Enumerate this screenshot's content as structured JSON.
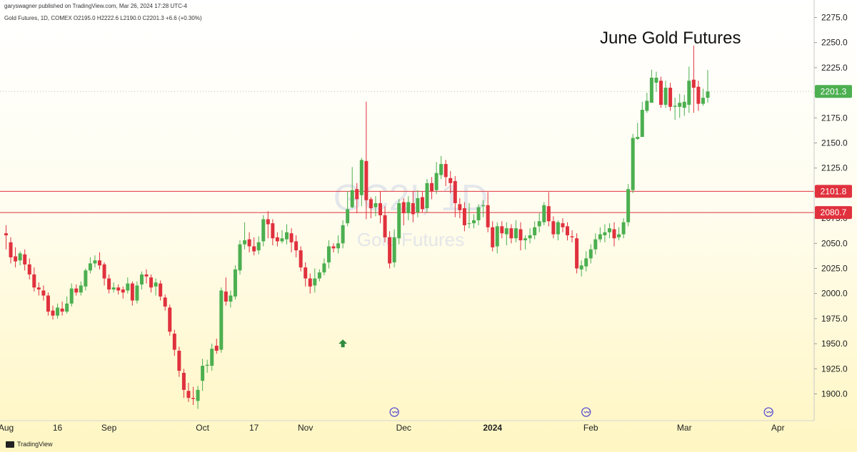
{
  "header": {
    "publisher": "garyswagner published on TradingView.com, Mar 26, 2024 17:28 UTC-4",
    "symbol_line": "Gold Futures, 1D, COMEX  O2195.0  H2222.6  L2190.0  C2201.3  +6.6 (+0.30%)"
  },
  "watermark": {
    "symbol": "GC2!, 1D",
    "name": "Gold Futures"
  },
  "footer": {
    "brand": "TradingView"
  },
  "colors": {
    "up": "#4caf50",
    "down": "#e0313d",
    "level_line": "#e0313d",
    "last_tag": "#4caf50"
  },
  "chart_data": {
    "type": "candlestick",
    "title": "June Gold Futures",
    "ylim": [
      1882.6,
      2287.7
    ],
    "y_ticks": [
      1900.0,
      1925.0,
      1950.0,
      1975.0,
      2000.0,
      2025.0,
      2050.0,
      2075.0,
      2100.0,
      2125.0,
      2150.0,
      2175.0,
      2200.0,
      2225.0,
      2250.0,
      2275.0
    ],
    "x_ticks": [
      {
        "label": "Aug",
        "bar": 0,
        "bold": false
      },
      {
        "label": "16",
        "bar": 11,
        "bold": false
      },
      {
        "label": "Sep",
        "bar": 22,
        "bold": false
      },
      {
        "label": "Oct",
        "bar": 42,
        "bold": false
      },
      {
        "label": "17",
        "bar": 53,
        "bold": false
      },
      {
        "label": "Nov",
        "bar": 64,
        "bold": false
      },
      {
        "label": "Dec",
        "bar": 85,
        "bold": false
      },
      {
        "label": "2024",
        "bar": 104,
        "bold": true
      },
      {
        "label": "Feb",
        "bar": 125,
        "bold": false
      },
      {
        "label": "Mar",
        "bar": 145,
        "bold": false
      },
      {
        "label": "Apr",
        "bar": 165,
        "bold": false
      }
    ],
    "levels": [
      2101.8,
      2080.7
    ],
    "last_price": 2201.3,
    "event_markers_bars": [
      83,
      124,
      163
    ],
    "signal_arrow_bar": 72,
    "signal_arrow_price": 1950.0,
    "candles": [
      [
        2060,
        2058,
        2068,
        2044
      ],
      [
        2051,
        2036,
        2056,
        2030
      ],
      [
        2037,
        2032,
        2046,
        2026
      ],
      [
        2033,
        2040,
        2042,
        2028
      ],
      [
        2039,
        2029,
        2044,
        2023
      ],
      [
        2029,
        2019,
        2035,
        2014
      ],
      [
        2019,
        2006,
        2026,
        2002
      ],
      [
        2006,
        2004,
        2011,
        1998
      ],
      [
        2003,
        1998,
        2008,
        1993
      ],
      [
        1998,
        1982,
        2001,
        1978
      ],
      [
        1983,
        1978,
        1988,
        1974
      ],
      [
        1978,
        1986,
        1990,
        1975
      ],
      [
        1985,
        1982,
        1992,
        1978
      ],
      [
        1982,
        1990,
        1997,
        1980
      ],
      [
        1990,
        2005,
        2010,
        1987
      ],
      [
        2005,
        2001,
        2009,
        1998
      ],
      [
        2001,
        2008,
        2012,
        1998
      ],
      [
        2007,
        2023,
        2025,
        2003
      ],
      [
        2023,
        2030,
        2036,
        2020
      ],
      [
        2030,
        2033,
        2038,
        2026
      ],
      [
        2033,
        2028,
        2041,
        2024
      ],
      [
        2029,
        2015,
        2031,
        2008
      ],
      [
        2015,
        2004,
        2019,
        2000
      ],
      [
        2004,
        2006,
        2011,
        2001
      ],
      [
        2006,
        2003,
        2009,
        1999
      ],
      [
        2004,
        2001,
        2007,
        1995
      ],
      [
        2003,
        2010,
        2016,
        2000
      ],
      [
        2010,
        1993,
        2012,
        1988
      ],
      [
        1993,
        2008,
        2012,
        1990
      ],
      [
        2009,
        2019,
        2022,
        2004
      ],
      [
        2019,
        2017,
        2024,
        2010
      ],
      [
        2016,
        2006,
        2019,
        2001
      ],
      [
        2007,
        2011,
        2015,
        1998
      ],
      [
        2010,
        1997,
        2013,
        1993
      ],
      [
        1996,
        1987,
        1999,
        1983
      ],
      [
        1986,
        1962,
        1989,
        1958
      ],
      [
        1960,
        1944,
        1964,
        1938
      ],
      [
        1943,
        1923,
        1947,
        1917
      ],
      [
        1921,
        1904,
        1925,
        1896
      ],
      [
        1903,
        1896,
        1911,
        1892
      ],
      [
        1896,
        1895,
        1907,
        1889
      ],
      [
        1893,
        1904,
        1908,
        1885
      ],
      [
        1913,
        1928,
        1935,
        1903
      ],
      [
        1928,
        1929,
        1934,
        1921
      ],
      [
        1928,
        1945,
        1950,
        1923
      ],
      [
        1948,
        1943,
        1955,
        1940
      ],
      [
        1944,
        2003,
        2006,
        1941
      ],
      [
        2002,
        1992,
        2016,
        1988
      ],
      [
        1992,
        1998,
        2003,
        1986
      ],
      [
        1997,
        2024,
        2028,
        1994
      ],
      [
        2023,
        2049,
        2053,
        2019
      ],
      [
        2049,
        2053,
        2071,
        2044
      ],
      [
        2054,
        2047,
        2061,
        2041
      ],
      [
        2047,
        2042,
        2056,
        2038
      ],
      [
        2043,
        2051,
        2057,
        2039
      ],
      [
        2052,
        2074,
        2078,
        2047
      ],
      [
        2074,
        2069,
        2082,
        2055
      ],
      [
        2070,
        2055,
        2074,
        2048
      ],
      [
        2056,
        2052,
        2061,
        2047
      ],
      [
        2052,
        2055,
        2063,
        2050
      ],
      [
        2054,
        2061,
        2069,
        2049
      ],
      [
        2060,
        2051,
        2065,
        2041
      ],
      [
        2052,
        2043,
        2058,
        2036
      ],
      [
        2043,
        2026,
        2047,
        2022
      ],
      [
        2026,
        2015,
        2031,
        2007
      ],
      [
        2015,
        2007,
        2020,
        2000
      ],
      [
        2008,
        2015,
        2025,
        2001
      ],
      [
        2015,
        2021,
        2024,
        2012
      ],
      [
        2021,
        2030,
        2035,
        2018
      ],
      [
        2031,
        2047,
        2053,
        2025
      ],
      [
        2047,
        2045,
        2050,
        2041
      ],
      [
        2045,
        2050,
        2058,
        2040
      ],
      [
        2050,
        2068,
        2073,
        2045
      ],
      [
        2070,
        2084,
        2102,
        2067
      ],
      [
        2086,
        2103,
        2126,
        2085
      ],
      [
        2104,
        2094,
        2110,
        2080
      ],
      [
        2098,
        2133,
        2135,
        2087
      ],
      [
        2132,
        2093,
        2191,
        2074
      ],
      [
        2094,
        2085,
        2096,
        2075
      ],
      [
        2086,
        2090,
        2097,
        2077
      ],
      [
        2090,
        2078,
        2102,
        2070
      ],
      [
        2078,
        2056,
        2087,
        2051
      ],
      [
        2056,
        2030,
        2062,
        2025
      ],
      [
        2031,
        2056,
        2064,
        2026
      ],
      [
        2055,
        2090,
        2094,
        2049
      ],
      [
        2091,
        2080,
        2095,
        2068
      ],
      [
        2080,
        2091,
        2097,
        2073
      ],
      [
        2090,
        2079,
        2102,
        2071
      ],
      [
        2081,
        2095,
        2103,
        2076
      ],
      [
        2096,
        2084,
        2102,
        2081
      ],
      [
        2085,
        2110,
        2114,
        2081
      ],
      [
        2110,
        2102,
        2116,
        2094
      ],
      [
        2103,
        2120,
        2131,
        2099
      ],
      [
        2118,
        2129,
        2137,
        2114
      ],
      [
        2129,
        2116,
        2133,
        2107
      ],
      [
        2115,
        2110,
        2122,
        2100
      ],
      [
        2112,
        2090,
        2117,
        2076
      ],
      [
        2089,
        2083,
        2095,
        2075
      ],
      [
        2085,
        2068,
        2091,
        2062
      ],
      [
        2070,
        2070,
        2090,
        2065
      ],
      [
        2070,
        2073,
        2079,
        2065
      ],
      [
        2073,
        2086,
        2089,
        2068
      ],
      [
        2087,
        2088,
        2093,
        2076
      ],
      [
        2088,
        2066,
        2101,
        2061
      ],
      [
        2066,
        2046,
        2072,
        2042
      ],
      [
        2047,
        2067,
        2071,
        2040
      ],
      [
        2067,
        2060,
        2072,
        2055
      ],
      [
        2059,
        2065,
        2071,
        2048
      ],
      [
        2065,
        2055,
        2069,
        2050
      ],
      [
        2055,
        2065,
        2073,
        2051
      ],
      [
        2064,
        2053,
        2071,
        2043
      ],
      [
        2053,
        2055,
        2058,
        2044
      ],
      [
        2055,
        2058,
        2065,
        2050
      ],
      [
        2058,
        2066,
        2072,
        2054
      ],
      [
        2067,
        2072,
        2080,
        2061
      ],
      [
        2071,
        2088,
        2091,
        2068
      ],
      [
        2087,
        2072,
        2101,
        2067
      ],
      [
        2072,
        2059,
        2077,
        2055
      ],
      [
        2059,
        2071,
        2073,
        2053
      ],
      [
        2070,
        2066,
        2075,
        2061
      ],
      [
        2067,
        2058,
        2071,
        2053
      ],
      [
        2057,
        2056,
        2063,
        2051
      ],
      [
        2055,
        2025,
        2060,
        2020
      ],
      [
        2024,
        2028,
        2033,
        2017
      ],
      [
        2027,
        2035,
        2042,
        2022
      ],
      [
        2035,
        2044,
        2049,
        2030
      ],
      [
        2044,
        2054,
        2060,
        2039
      ],
      [
        2054,
        2059,
        2066,
        2051
      ],
      [
        2058,
        2061,
        2069,
        2051
      ],
      [
        2061,
        2065,
        2070,
        2055
      ],
      [
        2064,
        2055,
        2071,
        2047
      ],
      [
        2056,
        2059,
        2066,
        2053
      ],
      [
        2059,
        2071,
        2075,
        2055
      ],
      [
        2071,
        2104,
        2109,
        2067
      ],
      [
        2103,
        2155,
        2159,
        2100
      ],
      [
        2154,
        2156,
        2170,
        2153
      ],
      [
        2156,
        2183,
        2191,
        2158
      ],
      [
        2182,
        2192,
        2200,
        2180
      ],
      [
        2190,
        2215,
        2223,
        2193
      ],
      [
        2210,
        2215,
        2221,
        2201
      ],
      [
        2212,
        2188,
        2216,
        2185
      ],
      [
        2188,
        2205,
        2212,
        2185
      ],
      [
        2205,
        2186,
        2210,
        2182
      ],
      [
        2186,
        2187,
        2195,
        2173
      ],
      [
        2186,
        2190,
        2199,
        2175
      ],
      [
        2185,
        2191,
        2198,
        2177
      ],
      [
        2188,
        2212,
        2226,
        2180
      ],
      [
        2213,
        2205,
        2247,
        2180
      ],
      [
        2206,
        2189,
        2212,
        2182
      ],
      [
        2189,
        2195,
        2204,
        2187
      ],
      [
        2195,
        2201.3,
        2222.6,
        2190
      ]
    ]
  }
}
